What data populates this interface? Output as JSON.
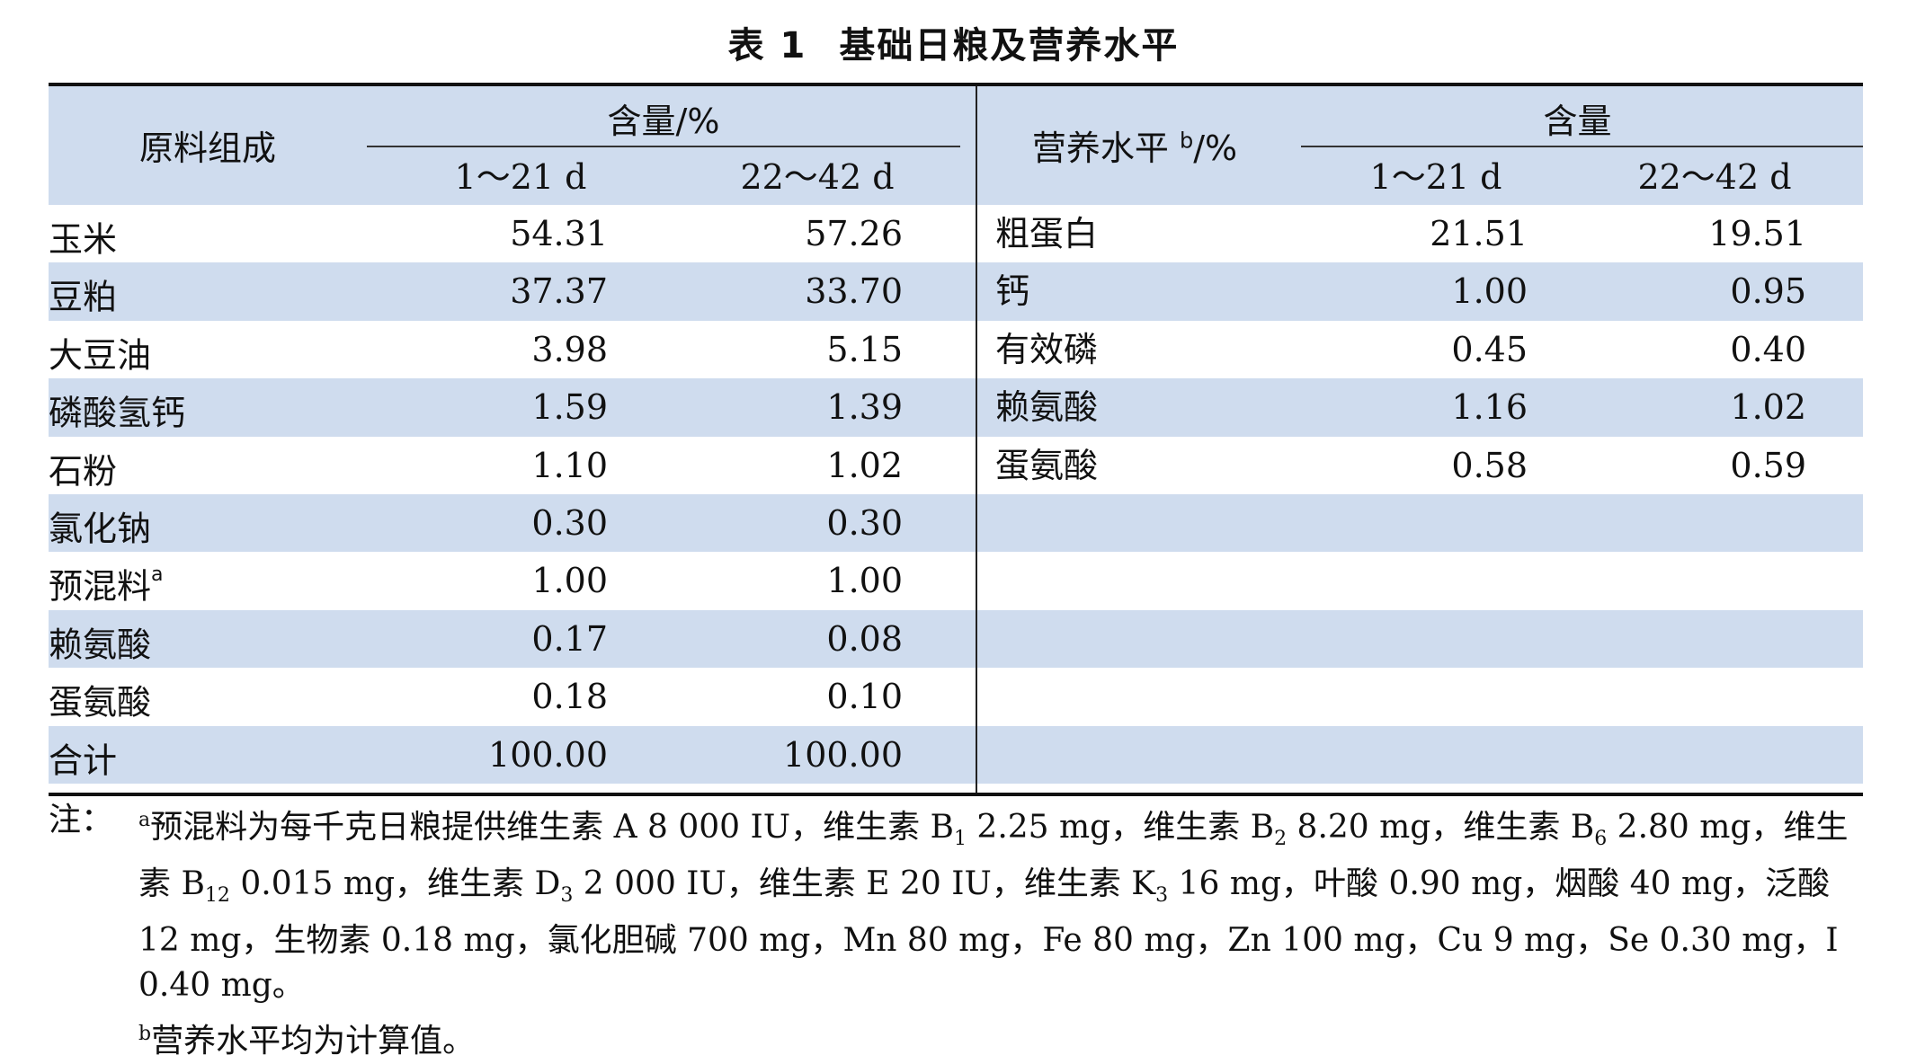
{
  "title": {
    "number": "表 1",
    "text": "基础日粮及营养水平"
  },
  "left": {
    "row_header": "原料组成",
    "group_header": "含量/%",
    "sub_headers": [
      "1～21 d",
      "22～42 d"
    ],
    "rows": [
      {
        "label": "玉米",
        "sup": "",
        "v1": "54.31",
        "v2": "57.26"
      },
      {
        "label": "豆粕",
        "sup": "",
        "v1": "37.37",
        "v2": "33.70"
      },
      {
        "label": "大豆油",
        "sup": "",
        "v1": "3.98",
        "v2": "5.15"
      },
      {
        "label": "磷酸氢钙",
        "sup": "",
        "v1": "1.59",
        "v2": "1.39"
      },
      {
        "label": "石粉",
        "sup": "",
        "v1": "1.10",
        "v2": "1.02"
      },
      {
        "label": "氯化钠",
        "sup": "",
        "v1": "0.30",
        "v2": "0.30"
      },
      {
        "label": "预混料",
        "sup": "a",
        "v1": "1.00",
        "v2": "1.00"
      },
      {
        "label": "赖氨酸",
        "sup": "",
        "v1": "0.17",
        "v2": "0.08"
      },
      {
        "label": "蛋氨酸",
        "sup": "",
        "v1": "0.18",
        "v2": "0.10"
      },
      {
        "label": "合计",
        "sup": "",
        "v1": "100.00",
        "v2": "100.00"
      }
    ]
  },
  "right": {
    "row_header_main": "营养水平",
    "row_header_sup": "b",
    "row_header_unit": "/%",
    "group_header": "含量",
    "sub_headers": [
      "1～21 d",
      "22～42 d"
    ],
    "rows": [
      {
        "label": "粗蛋白",
        "v1": "21.51",
        "v2": "19.51"
      },
      {
        "label": "钙",
        "v1": "1.00",
        "v2": "0.95"
      },
      {
        "label": "有效磷",
        "v1": "0.45",
        "v2": "0.40"
      },
      {
        "label": "赖氨酸",
        "v1": "1.16",
        "v2": "1.02"
      },
      {
        "label": "蛋氨酸",
        "v1": "0.58",
        "v2": "0.59"
      },
      {
        "label": "",
        "v1": "",
        "v2": ""
      },
      {
        "label": "",
        "v1": "",
        "v2": ""
      },
      {
        "label": "",
        "v1": "",
        "v2": ""
      },
      {
        "label": "",
        "v1": "",
        "v2": ""
      },
      {
        "label": "",
        "v1": "",
        "v2": ""
      }
    ]
  },
  "notes": {
    "label": "注：",
    "a_mark": "a",
    "a_parts": [
      "预混料为每千克日粮提供维生素 A 8 000 IU，维生素 B",
      "1",
      " 2.25 mg，维生素 B",
      "2",
      " 8.20 mg，维生素 B",
      "6",
      " 2.80 mg，维生素 B",
      "12",
      " 0.015 mg，维生素 D",
      "3",
      " 2 000 IU，维生素 E 20 IU，维生素 K",
      "3",
      " 16 mg，叶酸 0.90 mg，烟酸 40 mg，泛酸 12 mg，生物素 0.18 mg，氯化胆碱 700 mg，Mn 80 mg，Fe 80 mg，Zn 100 mg，Cu 9 mg，Se 0.30 mg，I 0.40 mg。"
    ],
    "b_mark": "b",
    "b_text": "营养水平均为计算值。"
  }
}
